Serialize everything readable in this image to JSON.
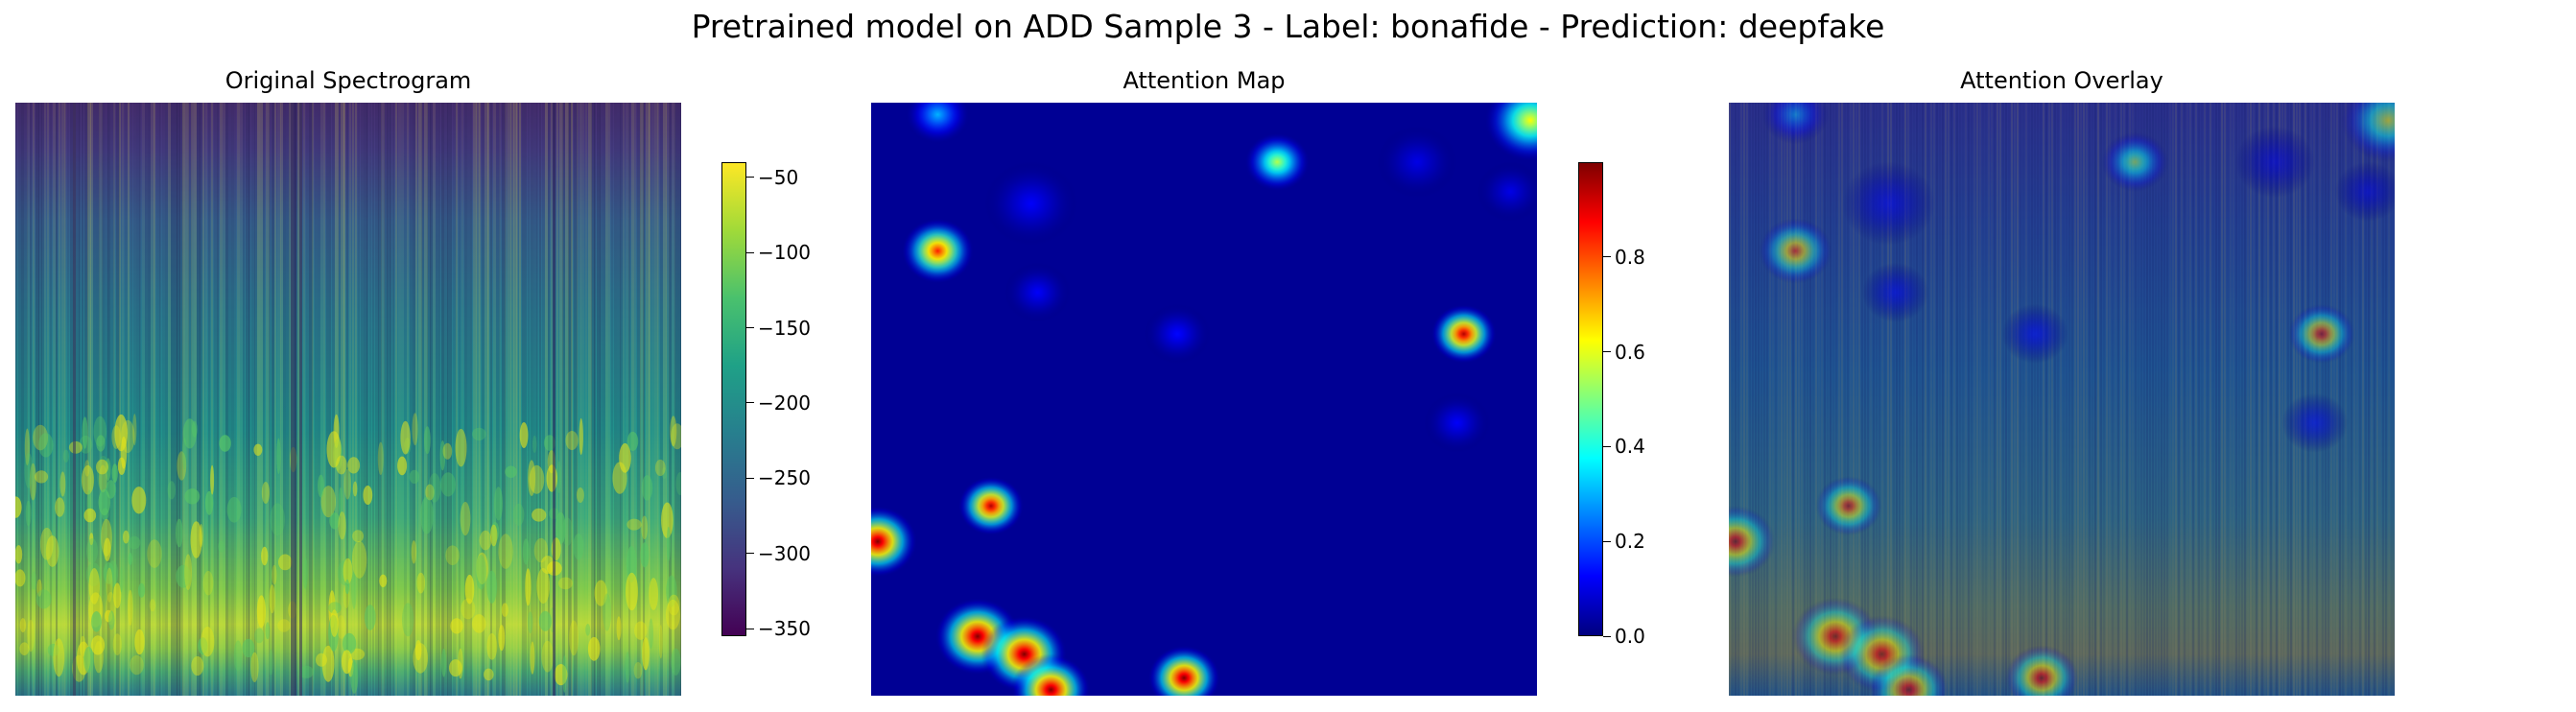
{
  "figure": {
    "suptitle": "Pretrained model on ADD Sample 3 - Label: bonafide - Prediction: deepfake"
  },
  "panels": [
    {
      "title": "Original Spectrogram"
    },
    {
      "title": "Attention Map"
    },
    {
      "title": "Attention Overlay"
    }
  ],
  "chart_data": [
    {
      "type": "heatmap",
      "title": "Original Spectrogram",
      "colormap": "viridis",
      "colorbar": {
        "range": [
          -355,
          -40
        ],
        "ticks": [
          -50,
          -100,
          -150,
          -200,
          -250,
          -300,
          -350
        ],
        "tick_labels": [
          "−50",
          "−100",
          "−150",
          "−200",
          "−250",
          "−300",
          "−350"
        ]
      },
      "axes": "off",
      "vertical_structure": "low frequencies (bottom) bright yellow-green, high frequencies (top) dark purple"
    },
    {
      "type": "heatmap",
      "title": "Attention Map",
      "colormap": "jet",
      "colorbar": {
        "range": [
          0.0,
          1.0
        ],
        "ticks": [
          0.0,
          0.2,
          0.4,
          0.6,
          0.8
        ],
        "tick_labels": [
          "0.0",
          "0.2",
          "0.4",
          "0.6",
          "0.8"
        ]
      },
      "axes": "off",
      "hotspots": [
        {
          "u": 0.1,
          "v": 0.25,
          "value": 0.85,
          "spread": 0.055
        },
        {
          "u": 0.61,
          "v": 0.1,
          "value": 0.55,
          "spread": 0.05
        },
        {
          "u": 0.99,
          "v": 0.03,
          "value": 0.62,
          "spread": 0.07
        },
        {
          "u": 0.89,
          "v": 0.39,
          "value": 0.95,
          "spread": 0.05
        },
        {
          "u": 0.18,
          "v": 0.68,
          "value": 0.95,
          "spread": 0.05
        },
        {
          "u": 0.01,
          "v": 0.74,
          "value": 1.0,
          "spread": 0.06
        },
        {
          "u": 0.16,
          "v": 0.9,
          "value": 1.0,
          "spread": 0.065
        },
        {
          "u": 0.23,
          "v": 0.93,
          "value": 1.0,
          "spread": 0.065
        },
        {
          "u": 0.27,
          "v": 0.99,
          "value": 1.0,
          "spread": 0.06
        },
        {
          "u": 0.47,
          "v": 0.97,
          "value": 1.0,
          "spread": 0.055
        },
        {
          "u": 0.1,
          "v": 0.02,
          "value": 0.3,
          "spread": 0.05
        },
        {
          "u": 0.24,
          "v": 0.17,
          "value": 0.12,
          "spread": 0.07
        },
        {
          "u": 0.25,
          "v": 0.32,
          "value": 0.12,
          "spread": 0.05
        },
        {
          "u": 0.46,
          "v": 0.39,
          "value": 0.13,
          "spread": 0.05
        },
        {
          "u": 0.88,
          "v": 0.54,
          "value": 0.12,
          "spread": 0.05
        },
        {
          "u": 0.82,
          "v": 0.1,
          "value": 0.1,
          "spread": 0.06
        },
        {
          "u": 0.96,
          "v": 0.15,
          "value": 0.1,
          "spread": 0.05
        }
      ]
    },
    {
      "type": "heatmap",
      "title": "Attention Overlay",
      "description": "attention map (jet) overlaid semi-transparently on the spectrogram",
      "axes": "off"
    }
  ]
}
